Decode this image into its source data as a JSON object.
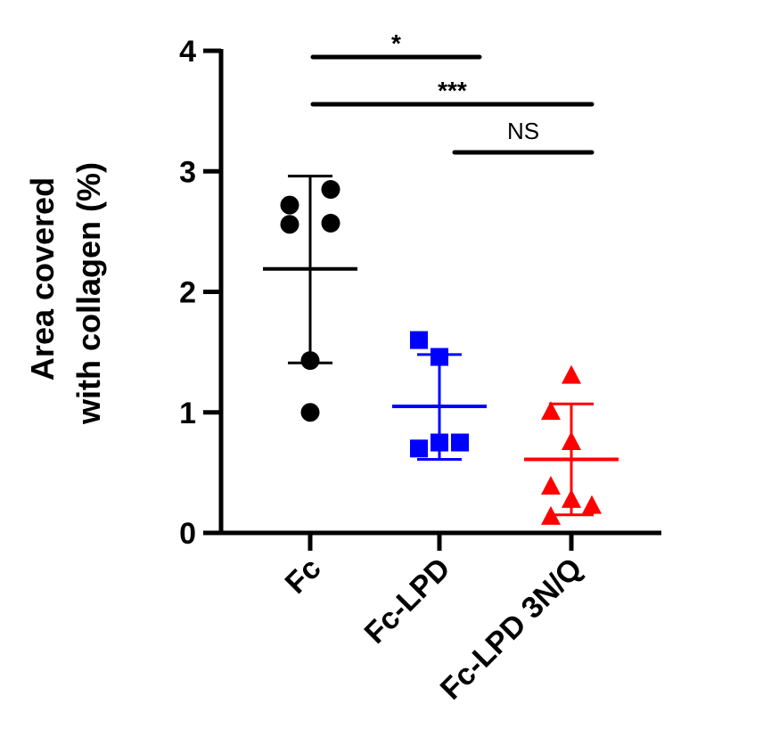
{
  "chart_data": {
    "type": "scatter",
    "ylabel_lines": [
      "Area covered",
      "with collagen (%)"
    ],
    "ylim": [
      0,
      4
    ],
    "yticks": [
      0,
      1,
      2,
      3,
      4
    ],
    "ytick_labels": [
      "0",
      "1",
      "2",
      "3",
      "4"
    ],
    "categories": [
      "Fc",
      "Fc-LPD",
      "Fc-LPD 3N/Q"
    ],
    "series": [
      {
        "category": "Fc",
        "marker": "circle",
        "color": "#000000",
        "points": [
          {
            "jitter": -1,
            "value": 2.72
          },
          {
            "jitter": 1,
            "value": 2.85
          },
          {
            "jitter": -1,
            "value": 2.56
          },
          {
            "jitter": 1,
            "value": 2.57
          },
          {
            "jitter": 0,
            "value": 1.43
          },
          {
            "jitter": 0,
            "value": 1.0
          }
        ],
        "mean": 2.19,
        "sd_low": 1.41,
        "sd_high": 2.96
      },
      {
        "category": "Fc-LPD",
        "marker": "square",
        "color": "#0000ff",
        "points": [
          {
            "jitter": -1,
            "value": 1.6
          },
          {
            "jitter": 0,
            "value": 1.46
          },
          {
            "jitter": -1,
            "value": 0.7
          },
          {
            "jitter": 0,
            "value": 0.75
          },
          {
            "jitter": 1,
            "value": 0.75
          }
        ],
        "mean": 1.05,
        "sd_low": 0.61,
        "sd_high": 1.48
      },
      {
        "category": "Fc-LPD 3N/Q",
        "marker": "triangle",
        "color": "#ff0000",
        "points": [
          {
            "jitter": 0,
            "value": 1.3
          },
          {
            "jitter": -1,
            "value": 1.0
          },
          {
            "jitter": 0,
            "value": 0.75
          },
          {
            "jitter": -1,
            "value": 0.38
          },
          {
            "jitter": 0,
            "value": 0.27
          },
          {
            "jitter": 1,
            "value": 0.22
          },
          {
            "jitter": -1,
            "value": 0.13
          }
        ],
        "mean": 0.61,
        "sd_low": 0.15,
        "sd_high": 1.07
      }
    ],
    "significance": [
      {
        "from": "Fc",
        "to": "Fc-LPD",
        "label": "*",
        "bold": true
      },
      {
        "from": "Fc",
        "to": "Fc-LPD 3N/Q",
        "label": "***",
        "bold": true
      },
      {
        "from": "Fc-LPD",
        "to": "Fc-LPD 3N/Q",
        "label": "NS",
        "bold": false
      }
    ]
  }
}
